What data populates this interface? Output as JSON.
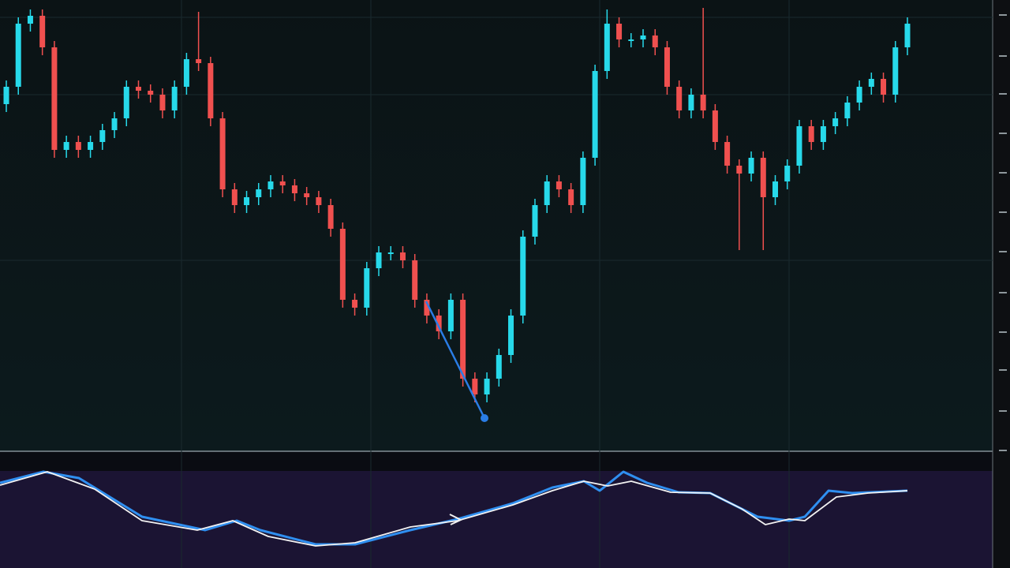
{
  "chart_data": [
    {
      "type": "candlestick",
      "open": [
        440,
        462,
        542,
        552,
        512,
        382,
        392,
        382,
        392,
        407,
        422,
        462,
        457,
        452,
        432,
        462,
        497,
        492,
        422,
        332,
        312,
        322,
        332,
        342,
        337,
        327,
        322,
        312,
        282,
        192,
        182,
        232,
        252,
        252,
        242,
        192,
        172,
        152,
        192,
        92,
        72,
        92,
        122,
        172,
        272,
        312,
        342,
        332,
        312,
        372,
        482,
        542,
        522,
        522,
        527,
        512,
        462,
        432,
        452,
        432,
        392,
        362,
        352,
        372,
        322,
        342,
        362,
        412,
        392,
        412,
        422,
        442,
        462,
        472,
        452,
        512
      ],
      "high": [
        470,
        550,
        560,
        560,
        520,
        400,
        400,
        400,
        415,
        430,
        470,
        470,
        465,
        460,
        470,
        505,
        557,
        500,
        430,
        340,
        330,
        340,
        350,
        350,
        345,
        335,
        330,
        320,
        290,
        200,
        240,
        260,
        260,
        260,
        250,
        200,
        180,
        200,
        200,
        100,
        100,
        130,
        180,
        280,
        320,
        350,
        350,
        340,
        380,
        490,
        560,
        550,
        530,
        535,
        535,
        520,
        470,
        460,
        562,
        440,
        400,
        370,
        380,
        380,
        350,
        370,
        420,
        420,
        420,
        430,
        450,
        470,
        480,
        480,
        520,
        550
      ],
      "low": [
        430,
        452,
        532,
        502,
        372,
        372,
        372,
        372,
        382,
        397,
        412,
        447,
        442,
        422,
        422,
        452,
        482,
        412,
        322,
        302,
        302,
        312,
        322,
        327,
        317,
        312,
        302,
        272,
        182,
        172,
        172,
        222,
        242,
        232,
        182,
        162,
        142,
        142,
        82,
        62,
        62,
        82,
        112,
        162,
        262,
        302,
        322,
        302,
        302,
        362,
        472,
        512,
        512,
        512,
        502,
        452,
        422,
        422,
        422,
        382,
        352,
        255,
        342,
        255,
        312,
        332,
        352,
        382,
        382,
        402,
        412,
        432,
        452,
        442,
        442,
        502
      ],
      "close": [
        462,
        542,
        552,
        512,
        382,
        392,
        382,
        392,
        407,
        422,
        462,
        457,
        452,
        432,
        462,
        497,
        492,
        422,
        332,
        312,
        322,
        332,
        342,
        337,
        327,
        322,
        312,
        282,
        192,
        182,
        232,
        252,
        252,
        242,
        192,
        172,
        152,
        192,
        92,
        72,
        92,
        122,
        172,
        272,
        312,
        342,
        332,
        312,
        372,
        482,
        542,
        522,
        522,
        527,
        512,
        462,
        432,
        452,
        432,
        392,
        362,
        352,
        372,
        322,
        342,
        362,
        412,
        392,
        412,
        422,
        442,
        462,
        472,
        452,
        512,
        542
      ],
      "up_color": "#27d9ea",
      "down_color": "#f0504f",
      "ylim": [
        0,
        572
      ]
    },
    {
      "type": "line",
      "xlim": [
        0,
        1258
      ],
      "ylim": [
        0,
        123
      ],
      "series": [
        {
          "color": "#2f8ff0",
          "x": [
            0,
            55,
            100,
            180,
            260,
            300,
            330,
            400,
            450,
            520,
            580,
            650,
            700,
            740,
            760,
            790,
            820,
            860,
            900,
            960,
            1000,
            1020,
            1050,
            1080,
            1150
          ],
          "values": [
            108,
            122,
            114,
            65,
            48,
            60,
            48,
            30,
            30,
            48,
            62,
            82,
            102,
            110,
            98,
            122,
            108,
            96,
            95,
            65,
            60,
            65,
            98,
            95,
            98
          ]
        },
        {
          "color": "#f2f2f2",
          "x": [
            0,
            60,
            120,
            180,
            250,
            295,
            340,
            400,
            450,
            520,
            580,
            650,
            700,
            740,
            770,
            800,
            850,
            900,
            940,
            970,
            1000,
            1020,
            1060,
            1100,
            1150
          ],
          "values": [
            105,
            122,
            100,
            60,
            48,
            60,
            40,
            28,
            32,
            52,
            60,
            80,
            98,
            110,
            104,
            110,
            96,
            95,
            75,
            55,
            62,
            60,
            90,
            95,
            98
          ]
        }
      ]
    }
  ]
}
